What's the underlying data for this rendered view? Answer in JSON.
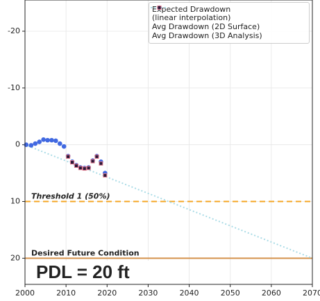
{
  "chart_data": {
    "type": "scatter",
    "xlim": [
      2000,
      2070
    ],
    "ylim": [
      24.6,
      -25.5
    ],
    "xticks": [
      2000,
      2010,
      2020,
      2030,
      2040,
      2050,
      2060,
      2070
    ],
    "yticks": [
      -20,
      -10,
      0,
      10,
      20
    ],
    "grid": true,
    "legend": "upper right",
    "series": [
      {
        "name": "Expected Drawdown\n(linear interpolation)",
        "kind": "line",
        "style": "dotted",
        "color": "#a9dbe6",
        "x": [
          2000,
          2070
        ],
        "values": [
          0,
          20
        ]
      },
      {
        "name": "Avg Drawdown (2D Surface)",
        "kind": "marker",
        "marker": "circle",
        "color": "#4169e1",
        "x": [
          2000.3,
          2001.5,
          2002.5,
          2003.5,
          2004.5,
          2005.5,
          2006.5,
          2007.5,
          2008.5,
          2009.5,
          2010.5,
          2011.5,
          2012.5,
          2013.5,
          2014.5,
          2015.5,
          2016.5,
          2017.5,
          2018.5,
          2019.5
        ],
        "values": [
          0,
          0.1,
          -0.2,
          -0.5,
          -0.9,
          -0.8,
          -0.8,
          -0.7,
          -0.2,
          0.3,
          2,
          3,
          3.6,
          4,
          4.1,
          4,
          2.8,
          2,
          3,
          5
        ]
      },
      {
        "name": "Avg Drawdown (3D Analysis)",
        "kind": "marker",
        "marker": "square",
        "color": "#2a1838",
        "edgecolor": "#e07a8e",
        "x": [
          2010.5,
          2011.5,
          2012.5,
          2013.5,
          2014.5,
          2015.5,
          2016.5,
          2017.5,
          2018.5,
          2019.5
        ],
        "values": [
          2.1,
          3.1,
          3.7,
          4.1,
          4.2,
          4.1,
          2.9,
          2.1,
          3.3,
          5.4
        ]
      }
    ],
    "reference_lines": [
      {
        "label": "Threshold 1 (50%)",
        "value": 10,
        "color": "#f5a623",
        "style": "dashed"
      },
      {
        "label": "Desired Future Condition",
        "value": 20,
        "color": "#d4914a",
        "style": "solid"
      }
    ],
    "annotation": "PDL = 20 ft"
  }
}
